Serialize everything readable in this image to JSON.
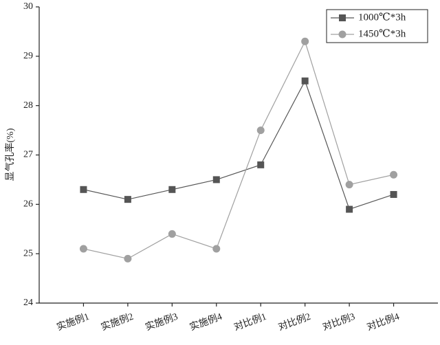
{
  "chart_data": {
    "type": "line",
    "y_label": "显气孔率(%)",
    "categories": [
      "实施例1",
      "实施例2",
      "实施例3",
      "实施例4",
      "对比例1",
      "对比例2",
      "对比例3",
      "对比例4"
    ],
    "series": [
      {
        "name": "1000℃*3h",
        "color": "#555555",
        "marker": "square",
        "values": [
          26.3,
          26.1,
          26.3,
          26.5,
          26.8,
          28.5,
          25.9,
          26.2
        ]
      },
      {
        "name": "1450℃*3h",
        "color": "#a0a0a0",
        "marker": "circle",
        "values": [
          25.1,
          24.9,
          25.4,
          25.1,
          27.5,
          29.3,
          26.4,
          26.6
        ]
      }
    ],
    "ylim": [
      24,
      30
    ],
    "yticks": [
      24,
      25,
      26,
      27,
      28,
      29,
      30
    ],
    "legend": "upper right",
    "grid": false
  }
}
